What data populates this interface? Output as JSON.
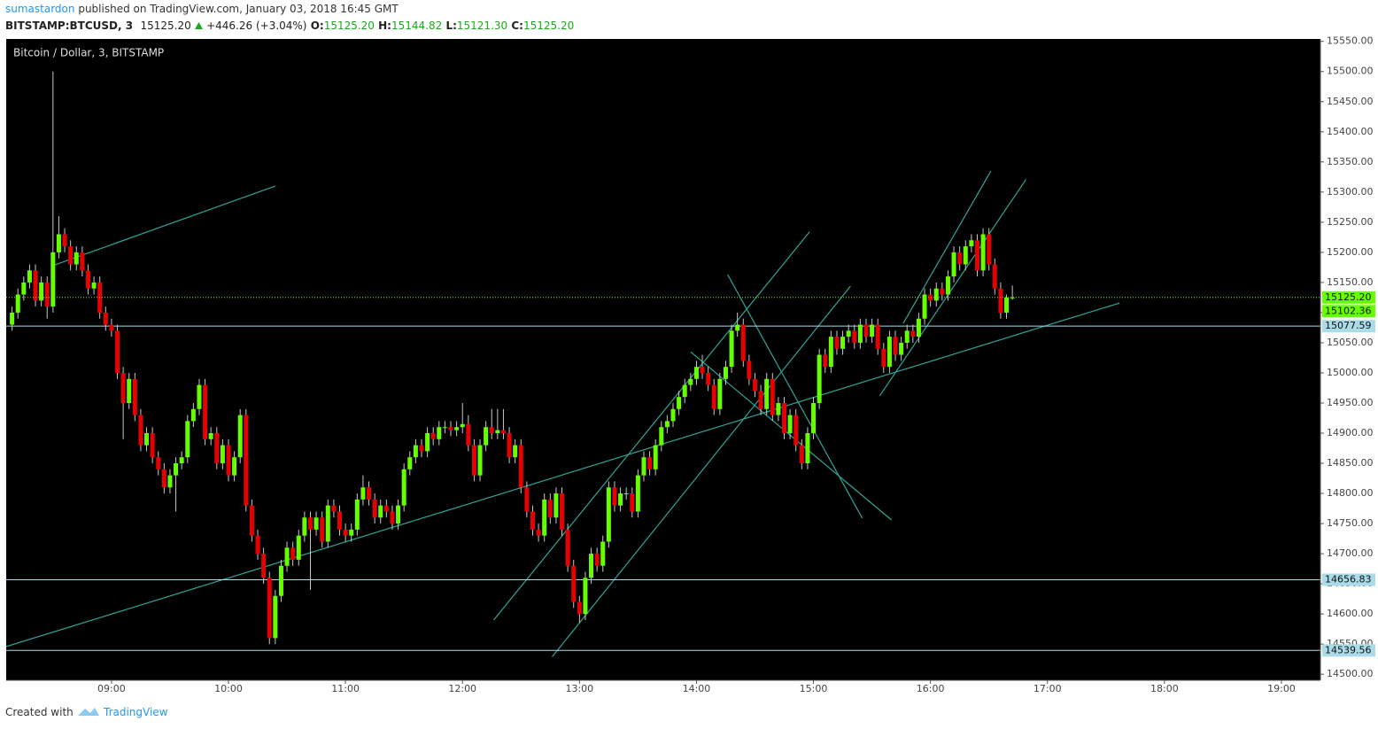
{
  "header": {
    "author": "sumastardon",
    "published": "published on TradingView.com, January 03, 2018 16:45 GMT",
    "symbol": "BITSTAMP:BTCUSD, 3",
    "last": "15125.20",
    "change": "+446.26 (+3.04%)",
    "o_label": "O:",
    "o": "15125.20",
    "h_label": "H:",
    "h": "15144.82",
    "l_label": "L:",
    "l": "15121.30",
    "c_label": "C:",
    "c": "15125.20"
  },
  "chart_data": {
    "type": "candlestick",
    "title": "Bitcoin / Dollar, 3, BITSTAMP",
    "x": [
      489,
      492,
      495,
      498,
      501,
      504,
      507,
      510,
      513,
      516,
      519,
      522,
      525,
      528,
      531,
      534,
      537,
      540,
      543,
      546,
      549,
      552,
      555,
      558,
      561,
      564,
      567,
      570,
      573,
      576,
      579,
      582,
      585,
      588,
      591,
      594,
      597,
      600,
      603,
      606,
      609,
      612,
      615,
      618,
      621,
      624,
      627,
      630,
      633,
      636,
      639,
      642,
      645,
      648,
      651,
      654,
      657,
      660,
      663,
      666,
      669,
      672,
      675,
      678,
      681,
      684,
      687,
      690,
      693,
      696,
      699,
      702,
      705,
      708,
      711,
      714,
      717,
      720,
      723,
      726,
      729,
      732,
      735,
      738,
      741,
      744,
      747,
      750,
      753,
      756,
      759,
      762,
      765,
      768,
      771,
      774,
      777,
      780,
      783,
      786,
      789,
      792,
      795,
      798,
      801,
      804,
      807,
      810,
      813,
      816,
      819,
      822,
      825,
      828,
      831,
      834,
      837,
      840,
      843,
      846,
      849,
      852,
      855,
      858,
      861,
      864,
      867,
      870,
      873,
      876,
      879,
      882,
      885,
      888,
      891,
      894,
      897,
      900,
      903,
      906,
      909,
      912,
      915,
      918,
      921,
      924,
      927,
      930,
      933,
      936,
      939,
      942,
      945,
      948,
      951,
      954,
      957,
      960,
      963,
      966,
      969,
      972,
      975,
      978,
      981,
      984,
      987,
      990,
      993,
      996,
      999,
      1002
    ],
    "ohlc": [
      [
        15080,
        15110,
        15070,
        15100
      ],
      [
        15100,
        15140,
        15090,
        15130
      ],
      [
        15130,
        15160,
        15120,
        15150
      ],
      [
        15150,
        15180,
        15140,
        15170
      ],
      [
        15170,
        15180,
        15110,
        15120
      ],
      [
        15120,
        15160,
        15110,
        15150
      ],
      [
        15150,
        15160,
        15090,
        15110
      ],
      [
        15110,
        15500,
        15100,
        15200
      ],
      [
        15200,
        15260,
        15190,
        15230
      ],
      [
        15230,
        15240,
        15200,
        15210
      ],
      [
        15210,
        15220,
        15170,
        15180
      ],
      [
        15180,
        15210,
        15170,
        15200
      ],
      [
        15200,
        15210,
        15160,
        15170
      ],
      [
        15170,
        15180,
        15130,
        15140
      ],
      [
        15140,
        15160,
        15130,
        15150
      ],
      [
        15150,
        15160,
        15090,
        15100
      ],
      [
        15100,
        15110,
        15070,
        15080
      ],
      [
        15080,
        15090,
        15060,
        15070
      ],
      [
        15070,
        15080,
        14990,
        15000
      ],
      [
        15000,
        15010,
        14890,
        14950
      ],
      [
        14950,
        15000,
        14940,
        14990
      ],
      [
        14990,
        15000,
        14920,
        14930
      ],
      [
        14930,
        14940,
        14870,
        14880
      ],
      [
        14880,
        14910,
        14870,
        14900
      ],
      [
        14900,
        14910,
        14850,
        14860
      ],
      [
        14860,
        14870,
        14830,
        14840
      ],
      [
        14840,
        14850,
        14800,
        14810
      ],
      [
        14810,
        14840,
        14800,
        14830
      ],
      [
        14830,
        14860,
        14770,
        14850
      ],
      [
        14850,
        14870,
        14840,
        14860
      ],
      [
        14860,
        14930,
        14850,
        14920
      ],
      [
        14920,
        14950,
        14910,
        14940
      ],
      [
        14940,
        14990,
        14930,
        14980
      ],
      [
        14980,
        14990,
        14880,
        14890
      ],
      [
        14890,
        14910,
        14880,
        14900
      ],
      [
        14900,
        14910,
        14840,
        14850
      ],
      [
        14850,
        14890,
        14840,
        14880
      ],
      [
        14880,
        14890,
        14820,
        14830
      ],
      [
        14830,
        14870,
        14820,
        14860
      ],
      [
        14860,
        14940,
        14850,
        14930
      ],
      [
        14930,
        14940,
        14770,
        14780
      ],
      [
        14780,
        14790,
        14720,
        14730
      ],
      [
        14730,
        14740,
        14690,
        14700
      ],
      [
        14700,
        14710,
        14650,
        14660
      ],
      [
        14660,
        14670,
        14550,
        14560
      ],
      [
        14560,
        14640,
        14550,
        14630
      ],
      [
        14630,
        14690,
        14620,
        14680
      ],
      [
        14680,
        14720,
        14670,
        14710
      ],
      [
        14710,
        14720,
        14680,
        14690
      ],
      [
        14690,
        14740,
        14680,
        14730
      ],
      [
        14730,
        14770,
        14720,
        14760
      ],
      [
        14760,
        14770,
        14640,
        14740
      ],
      [
        14740,
        14770,
        14730,
        14760
      ],
      [
        14760,
        14770,
        14710,
        14720
      ],
      [
        14720,
        14790,
        14710,
        14780
      ],
      [
        14780,
        14790,
        14760,
        14770
      ],
      [
        14770,
        14780,
        14730,
        14740
      ],
      [
        14740,
        14750,
        14720,
        14730
      ],
      [
        14730,
        14750,
        14720,
        14740
      ],
      [
        14740,
        14800,
        14730,
        14790
      ],
      [
        14790,
        14830,
        14780,
        14810
      ],
      [
        14810,
        14820,
        14780,
        14790
      ],
      [
        14790,
        14800,
        14750,
        14760
      ],
      [
        14760,
        14790,
        14750,
        14780
      ],
      [
        14780,
        14790,
        14760,
        14770
      ],
      [
        14770,
        14780,
        14740,
        14750
      ],
      [
        14750,
        14790,
        14740,
        14780
      ],
      [
        14780,
        14850,
        14770,
        14840
      ],
      [
        14840,
        14870,
        14830,
        14860
      ],
      [
        14860,
        14890,
        14850,
        14880
      ],
      [
        14880,
        14890,
        14860,
        14870
      ],
      [
        14870,
        14910,
        14860,
        14900
      ],
      [
        14900,
        14910,
        14880,
        14890
      ],
      [
        14890,
        14920,
        14880,
        14910
      ],
      [
        14910,
        14920,
        14900,
        14910
      ],
      [
        14910,
        14920,
        14895,
        14905
      ],
      [
        14905,
        14920,
        14895,
        14910
      ],
      [
        14910,
        14950,
        14900,
        14915
      ],
      [
        14915,
        14930,
        14870,
        14880
      ],
      [
        14880,
        14890,
        14820,
        14830
      ],
      [
        14830,
        14890,
        14820,
        14880
      ],
      [
        14880,
        14920,
        14870,
        14910
      ],
      [
        14910,
        14940,
        14890,
        14900
      ],
      [
        14900,
        14940,
        14890,
        14905
      ],
      [
        14905,
        14940,
        14890,
        14900
      ],
      [
        14900,
        14910,
        14850,
        14860
      ],
      [
        14860,
        14890,
        14850,
        14880
      ],
      [
        14880,
        14890,
        14800,
        14810
      ],
      [
        14810,
        14820,
        14760,
        14770
      ],
      [
        14770,
        14780,
        14730,
        14740
      ],
      [
        14740,
        14750,
        14720,
        14730
      ],
      [
        14730,
        14800,
        14720,
        14790
      ],
      [
        14790,
        14800,
        14750,
        14760
      ],
      [
        14760,
        14810,
        14750,
        14800
      ],
      [
        14800,
        14810,
        14730,
        14740
      ],
      [
        14740,
        14750,
        14670,
        14680
      ],
      [
        14680,
        14690,
        14610,
        14620
      ],
      [
        14620,
        14630,
        14585,
        14600
      ],
      [
        14600,
        14670,
        14590,
        14660
      ],
      [
        14660,
        14710,
        14650,
        14700
      ],
      [
        14700,
        14710,
        14670,
        14680
      ],
      [
        14680,
        14730,
        14670,
        14720
      ],
      [
        14720,
        14820,
        14710,
        14810
      ],
      [
        14810,
        14820,
        14770,
        14780
      ],
      [
        14780,
        14810,
        14770,
        14800
      ],
      [
        14800,
        14810,
        14790,
        14800
      ],
      [
        14800,
        14810,
        14760,
        14770
      ],
      [
        14770,
        14840,
        14760,
        14830
      ],
      [
        14830,
        14870,
        14820,
        14860
      ],
      [
        14860,
        14870,
        14830,
        14840
      ],
      [
        14840,
        14890,
        14830,
        14880
      ],
      [
        14880,
        14920,
        14870,
        14910
      ],
      [
        14910,
        14930,
        14900,
        14920
      ],
      [
        14920,
        14950,
        14910,
        14940
      ],
      [
        14940,
        14970,
        14930,
        14960
      ],
      [
        14960,
        14990,
        14950,
        14980
      ],
      [
        14980,
        15000,
        14970,
        14990
      ],
      [
        14990,
        15020,
        14980,
        15010
      ],
      [
        15010,
        15030,
        14990,
        15000
      ],
      [
        15000,
        15010,
        14970,
        14980
      ],
      [
        14980,
        14990,
        14930,
        14940
      ],
      [
        14940,
        15000,
        14930,
        14990
      ],
      [
        14990,
        15020,
        14980,
        15010
      ],
      [
        15010,
        15080,
        15000,
        15070
      ],
      [
        15070,
        15100,
        15060,
        15080
      ],
      [
        15080,
        15090,
        15010,
        15020
      ],
      [
        15020,
        15030,
        14980,
        14990
      ],
      [
        14990,
        15000,
        14960,
        14970
      ],
      [
        14970,
        14980,
        14930,
        14940
      ],
      [
        14940,
        15000,
        14930,
        14990
      ],
      [
        14990,
        15000,
        14920,
        14930
      ],
      [
        14930,
        14960,
        14920,
        14950
      ],
      [
        14950,
        14960,
        14890,
        14900
      ],
      [
        14900,
        14940,
        14890,
        14930
      ],
      [
        14930,
        14940,
        14870,
        14880
      ],
      [
        14880,
        14890,
        14840,
        14850
      ],
      [
        14850,
        14910,
        14840,
        14900
      ],
      [
        14900,
        14960,
        14890,
        14950
      ],
      [
        14950,
        15040,
        14940,
        15030
      ],
      [
        15030,
        15040,
        15000,
        15010
      ],
      [
        15010,
        15070,
        15000,
        15060
      ],
      [
        15060,
        15070,
        15030,
        15040
      ],
      [
        15040,
        15070,
        15030,
        15060
      ],
      [
        15060,
        15080,
        15050,
        15070
      ],
      [
        15070,
        15080,
        15040,
        15050
      ],
      [
        15050,
        15090,
        15040,
        15080
      ],
      [
        15080,
        15090,
        15050,
        15060
      ],
      [
        15060,
        15090,
        15050,
        15080
      ],
      [
        15080,
        15090,
        15030,
        15040
      ],
      [
        15040,
        15050,
        15000,
        15010
      ],
      [
        15010,
        15070,
        15000,
        15060
      ],
      [
        15060,
        15070,
        15020,
        15030
      ],
      [
        15030,
        15060,
        15020,
        15050
      ],
      [
        15050,
        15080,
        15040,
        15070
      ],
      [
        15070,
        15080,
        15050,
        15060
      ],
      [
        15060,
        15100,
        15050,
        15090
      ],
      [
        15090,
        15140,
        15080,
        15130
      ],
      [
        15130,
        15140,
        15110,
        15120
      ],
      [
        15120,
        15150,
        15110,
        15140
      ],
      [
        15140,
        15150,
        15120,
        15130
      ],
      [
        15130,
        15170,
        15120,
        15160
      ],
      [
        15160,
        15210,
        15150,
        15200
      ],
      [
        15200,
        15210,
        15170,
        15180
      ],
      [
        15180,
        15220,
        15170,
        15210
      ],
      [
        15210,
        15230,
        15200,
        15220
      ],
      [
        15220,
        15230,
        15160,
        15170
      ],
      [
        15170,
        15240,
        15160,
        15230
      ],
      [
        15230,
        15240,
        15170,
        15180
      ],
      [
        15180,
        15190,
        15130,
        15140
      ],
      [
        15140,
        15150,
        15090,
        15100
      ],
      [
        15100,
        15130,
        15090,
        15125.2
      ],
      [
        15125.2,
        15144.82,
        15121.3,
        15125.2
      ]
    ],
    "xlim": [
      486,
      1160
    ],
    "xticks": [
      {
        "value": 540,
        "label": "09:00"
      },
      {
        "value": 600,
        "label": "10:00"
      },
      {
        "value": 660,
        "label": "11:00"
      },
      {
        "value": 720,
        "label": "12:00"
      },
      {
        "value": 780,
        "label": "13:00"
      },
      {
        "value": 840,
        "label": "14:00"
      },
      {
        "value": 900,
        "label": "15:00"
      },
      {
        "value": 960,
        "label": "16:00"
      },
      {
        "value": 1020,
        "label": "17:00"
      },
      {
        "value": 1080,
        "label": "18:00"
      },
      {
        "value": 1140,
        "label": "19:00"
      }
    ],
    "ylim": [
      14490,
      15554
    ],
    "yticks": [
      {
        "value": 14500,
        "label": "14500.00"
      },
      {
        "value": 14550,
        "label": "14550.00"
      },
      {
        "value": 14600,
        "label": "14600.00"
      },
      {
        "value": 14650,
        "label": "14650.00"
      },
      {
        "value": 14700,
        "label": "14700.00"
      },
      {
        "value": 14750,
        "label": "14750.00"
      },
      {
        "value": 14800,
        "label": "14800.00"
      },
      {
        "value": 14850,
        "label": "14850.00"
      },
      {
        "value": 14900,
        "label": "14900.00"
      },
      {
        "value": 14950,
        "label": "14950.00"
      },
      {
        "value": 15000,
        "label": "15000.00"
      },
      {
        "value": 15050,
        "label": "15050.00"
      },
      {
        "value": 15100,
        "label": "15100.00"
      },
      {
        "value": 15150,
        "label": "15150.00"
      },
      {
        "value": 15200,
        "label": "15200.00"
      },
      {
        "value": 15250,
        "label": "15250.00"
      },
      {
        "value": 15300,
        "label": "15300.00"
      },
      {
        "value": 15350,
        "label": "15350.00"
      },
      {
        "value": 15400,
        "label": "15400.00"
      },
      {
        "value": 15450,
        "label": "15450.00"
      },
      {
        "value": 15500,
        "label": "15500.00"
      },
      {
        "value": 15550,
        "label": "15550.00"
      }
    ],
    "hlines": [
      {
        "value": 15077.59,
        "label": "15077.59"
      },
      {
        "value": 14656.83,
        "label": "14656.83"
      },
      {
        "value": 14539.56,
        "label": "14539.56"
      }
    ],
    "last_price": {
      "value": 15125.2,
      "label": "15125.20"
    },
    "marker_price": {
      "value": 15102.36,
      "label": "15102.36"
    },
    "trendlines": [
      {
        "x": [
          486,
          1057
        ],
        "y": [
          14546,
          15116
        ]
      },
      {
        "x": [
          510,
          624
        ],
        "y": [
          15178,
          15310
        ]
      },
      {
        "x": [
          736,
          898
        ],
        "y": [
          14590,
          15234
        ]
      },
      {
        "x": [
          766,
          919
        ],
        "y": [
          14529,
          15144
        ]
      },
      {
        "x": [
          856,
          925
        ],
        "y": [
          15163,
          14759
        ]
      },
      {
        "x": [
          837,
          940
        ],
        "y": [
          15035,
          14756
        ]
      },
      {
        "x": [
          934,
          1009
        ],
        "y": [
          14962,
          15321
        ]
      },
      {
        "x": [
          946,
          991
        ],
        "y": [
          15082,
          15335
        ]
      }
    ],
    "colors": {
      "up": "#66ff00",
      "down": "#e60000",
      "wick": "#c8c8c8",
      "trend": "#2fa596",
      "hline": "#a9dbe9",
      "last": "#66ff00",
      "background": "#000000"
    }
  },
  "footer": {
    "created": "Created with",
    "brand": "TradingView"
  }
}
